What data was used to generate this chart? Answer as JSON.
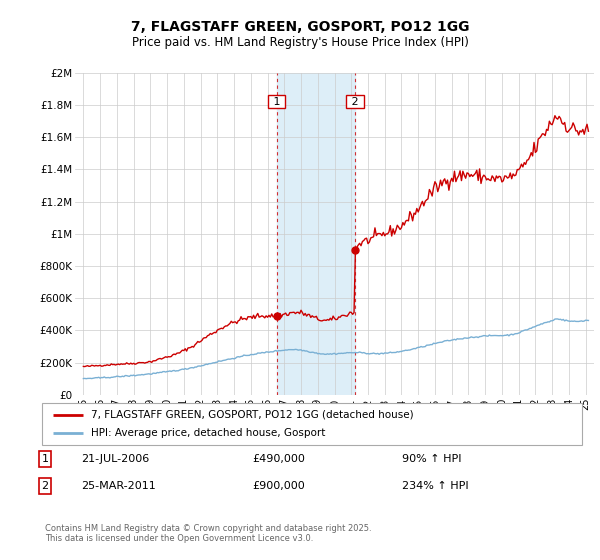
{
  "title": "7, FLAGSTAFF GREEN, GOSPORT, PO12 1GG",
  "subtitle": "Price paid vs. HM Land Registry's House Price Index (HPI)",
  "transaction1_date": 2006.55,
  "transaction1_price": 490000,
  "transaction1_label": "1",
  "transaction1_display": "21-JUL-2006",
  "transaction1_pct": "90% ↑ HPI",
  "transaction2_date": 2011.23,
  "transaction2_price": 900000,
  "transaction2_label": "2",
  "transaction2_display": "25-MAR-2011",
  "transaction2_pct": "234% ↑ HPI",
  "shade_color": "#ddeef8",
  "red_color": "#cc0000",
  "blue_color": "#7ab0d4",
  "grid_color": "#cccccc",
  "bg_color": "#ffffff",
  "legend_label_red": "7, FLAGSTAFF GREEN, GOSPORT, PO12 1GG (detached house)",
  "legend_label_blue": "HPI: Average price, detached house, Gosport",
  "footer": "Contains HM Land Registry data © Crown copyright and database right 2025.\nThis data is licensed under the Open Government Licence v3.0.",
  "xlim": [
    1994.5,
    2025.5
  ],
  "ylim": [
    0,
    2000000
  ],
  "yticks": [
    0,
    200000,
    400000,
    600000,
    800000,
    1000000,
    1200000,
    1400000,
    1600000,
    1800000,
    2000000
  ],
  "ytick_labels": [
    "£0",
    "£200K",
    "£400K",
    "£600K",
    "£800K",
    "£1M",
    "£1.2M",
    "£1.4M",
    "£1.6M",
    "£1.8M",
    "£2M"
  ],
  "xticks": [
    1995,
    1996,
    1997,
    1998,
    1999,
    2000,
    2001,
    2002,
    2003,
    2004,
    2005,
    2006,
    2007,
    2008,
    2009,
    2010,
    2011,
    2012,
    2013,
    2014,
    2015,
    2016,
    2017,
    2018,
    2019,
    2020,
    2021,
    2022,
    2023,
    2024,
    2025
  ]
}
